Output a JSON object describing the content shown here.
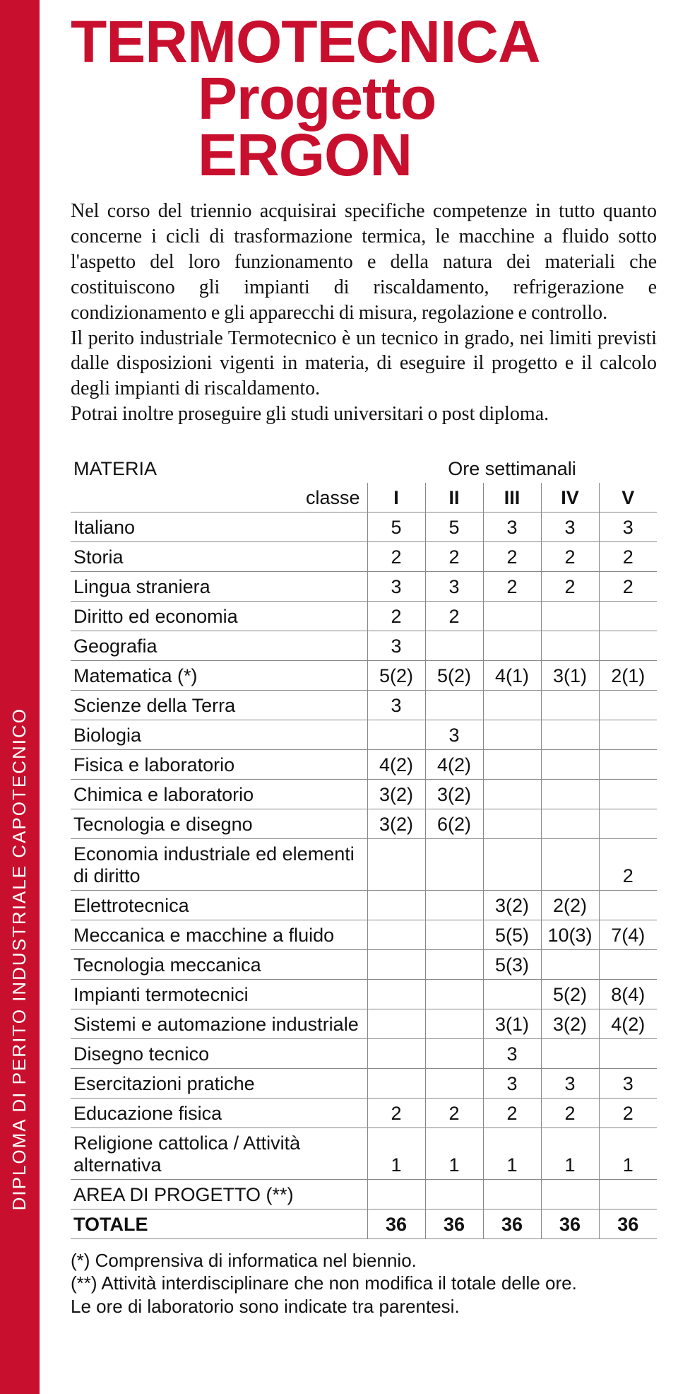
{
  "sidebar": "DIPLOMA DI PERITO INDUSTRIALE CAPOTECNICO",
  "title_line1": "TERMOTECNICA",
  "title_line2": "Progetto ERGON",
  "intro_p1": "Nel corso del triennio acquisirai specifiche competenze in tutto quanto concerne i cicli di trasformazione termica, le macchine a fluido sotto l'aspetto del loro funzionamento e della natura dei materiali che costituiscono gli impianti di riscaldamento, refrigerazione e condizionamento e gli apparecchi di misura, regolazione e controllo.",
  "intro_p2": "Il perito industriale Termotecnico è un tecnico in grado, nei limiti previsti dalle disposizioni vigenti in materia, di eseguire il progetto e il calcolo degli impianti di riscaldamento.",
  "intro_p3": "Potrai inoltre proseguire gli studi universitari o post diploma.",
  "table": {
    "hdr_materia": "MATERIA",
    "hdr_ore": "Ore settimanali",
    "hdr_classe": "classe",
    "roman": [
      "I",
      "II",
      "III",
      "IV",
      "V"
    ],
    "rows": [
      {
        "s": "Italiano",
        "v": [
          "5",
          "5",
          "3",
          "3",
          "3"
        ]
      },
      {
        "s": "Storia",
        "v": [
          "2",
          "2",
          "2",
          "2",
          "2"
        ]
      },
      {
        "s": "Lingua straniera",
        "v": [
          "3",
          "3",
          "2",
          "2",
          "2"
        ]
      },
      {
        "s": "Diritto ed economia",
        "v": [
          "2",
          "2",
          "",
          "",
          ""
        ]
      },
      {
        "s": "Geografia",
        "v": [
          "3",
          "",
          "",
          "",
          ""
        ]
      },
      {
        "s": "Matematica (*)",
        "v": [
          "5(2)",
          "5(2)",
          "4(1)",
          "3(1)",
          "2(1)"
        ]
      },
      {
        "s": "Scienze della Terra",
        "v": [
          "3",
          "",
          "",
          "",
          ""
        ]
      },
      {
        "s": "Biologia",
        "v": [
          "",
          "3",
          "",
          "",
          ""
        ]
      },
      {
        "s": "Fisica e laboratorio",
        "v": [
          "4(2)",
          "4(2)",
          "",
          "",
          ""
        ]
      },
      {
        "s": "Chimica e laboratorio",
        "v": [
          "3(2)",
          "3(2)",
          "",
          "",
          ""
        ]
      },
      {
        "s": "Tecnologia e disegno",
        "v": [
          "3(2)",
          "6(2)",
          "",
          "",
          ""
        ]
      },
      {
        "s": "Economia industriale ed elementi di diritto",
        "v": [
          "",
          "",
          "",
          "",
          "2"
        ]
      },
      {
        "s": "Elettrotecnica",
        "v": [
          "",
          "",
          "3(2)",
          "2(2)",
          ""
        ]
      },
      {
        "s": "Meccanica e macchine a fluido",
        "v": [
          "",
          "",
          "5(5)",
          "10(3)",
          "7(4)"
        ]
      },
      {
        "s": "Tecnologia meccanica",
        "v": [
          "",
          "",
          "5(3)",
          "",
          ""
        ]
      },
      {
        "s": "Impianti termotecnici",
        "v": [
          "",
          "",
          "",
          "5(2)",
          "8(4)"
        ]
      },
      {
        "s": "Sistemi e automazione industriale",
        "v": [
          "",
          "",
          "3(1)",
          "3(2)",
          "4(2)"
        ]
      },
      {
        "s": "Disegno tecnico",
        "v": [
          "",
          "",
          "3",
          "",
          ""
        ]
      },
      {
        "s": "Esercitazioni pratiche",
        "v": [
          "",
          "",
          "3",
          "3",
          "3"
        ]
      },
      {
        "s": "Educazione fisica",
        "v": [
          "2",
          "2",
          "2",
          "2",
          "2"
        ]
      },
      {
        "s": "Religione cattolica / Attività alternativa",
        "v": [
          "1",
          "1",
          "1",
          "1",
          "1"
        ]
      },
      {
        "s": "AREA DI PROGETTO (**)",
        "v": [
          "",
          "",
          "",
          "",
          ""
        ]
      }
    ],
    "total_label": "TOTALE",
    "total": [
      "36",
      "36",
      "36",
      "36",
      "36"
    ]
  },
  "footnotes": {
    "a": "(*) Comprensiva di informatica nel biennio.",
    "b": "(**) Attività interdisciplinare che non modifica il totale delle ore.",
    "c": "Le ore di laboratorio sono indicate tra parentesi."
  },
  "colors": {
    "brand_red": "#c8102e",
    "text": "#111111",
    "rule": "#888888",
    "bg": "#ffffff"
  }
}
